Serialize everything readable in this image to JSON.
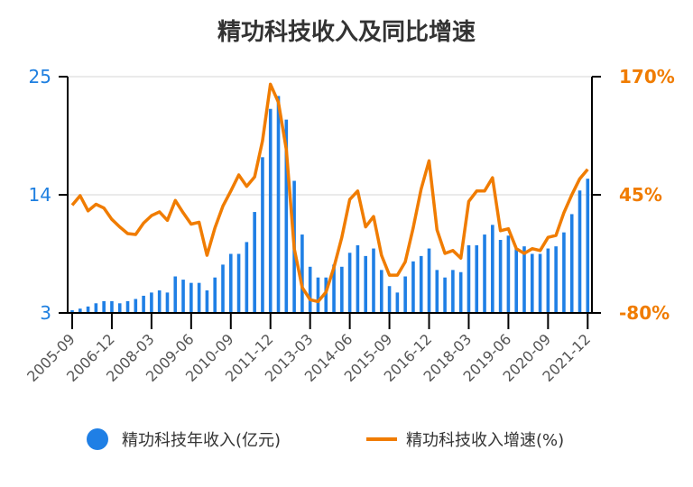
{
  "chart_data": {
    "type": "bar+line",
    "title": "精功科技收入及同比增速",
    "x": [
      "2005-09",
      "2005-12",
      "2006-03",
      "2006-06",
      "2006-09",
      "2006-12",
      "2007-03",
      "2007-06",
      "2007-09",
      "2007-12",
      "2008-03",
      "2008-06",
      "2008-09",
      "2008-12",
      "2009-03",
      "2009-06",
      "2009-09",
      "2009-12",
      "2010-03",
      "2010-06",
      "2010-09",
      "2010-12",
      "2011-03",
      "2011-06",
      "2011-09",
      "2011-12",
      "2012-03",
      "2012-06",
      "2012-09",
      "2012-12",
      "2013-03",
      "2013-06",
      "2013-09",
      "2013-12",
      "2014-03",
      "2014-06",
      "2014-09",
      "2014-12",
      "2015-03",
      "2015-06",
      "2015-09",
      "2015-12",
      "2016-03",
      "2016-06",
      "2016-09",
      "2016-12",
      "2017-03",
      "2017-06",
      "2017-09",
      "2017-12",
      "2018-03",
      "2018-06",
      "2018-09",
      "2018-12",
      "2019-03",
      "2019-06",
      "2019-09",
      "2019-12",
      "2020-03",
      "2020-06",
      "2020-09",
      "2020-12",
      "2021-03",
      "2021-06",
      "2021-09",
      "2021-12"
    ],
    "xtick_labels": [
      "2005-09",
      "2006-12",
      "2008-03",
      "2009-06",
      "2010-09",
      "2011-12",
      "2013-03",
      "2014-06",
      "2015-09",
      "2016-12",
      "2018-03",
      "2019-06",
      "2020-09",
      "2021-12"
    ],
    "series": [
      {
        "name": "精功科技年收入(亿元)",
        "type": "bar",
        "axis": "left",
        "color": "#1f7fe5",
        "values": [
          3.25,
          3.4,
          3.6,
          3.9,
          4.1,
          4.1,
          3.9,
          4.1,
          4.3,
          4.6,
          4.9,
          5.1,
          4.9,
          6.4,
          6.1,
          5.8,
          5.8,
          5.1,
          6.3,
          7.5,
          8.5,
          8.5,
          9.6,
          12.4,
          17.5,
          22.0,
          23.2,
          21.0,
          15.3,
          10.3,
          7.3,
          6.3,
          6.3,
          7.5,
          7.3,
          8.6,
          9.3,
          8.3,
          9.0,
          7.0,
          5.5,
          4.9,
          6.4,
          7.8,
          8.3,
          9.0,
          7.0,
          6.3,
          7.0,
          6.8,
          9.3,
          9.3,
          10.3,
          11.2,
          9.8,
          10.2,
          9.0,
          9.2,
          8.5,
          8.5,
          9.0,
          9.2,
          10.5,
          12.2,
          14.4,
          15.5
        ]
      },
      {
        "name": "精功科技收入增速(%)",
        "type": "line",
        "axis": "right",
        "color": "#f07c00",
        "values": [
          34,
          44,
          28,
          35,
          31,
          19,
          11,
          4,
          3,
          15,
          23,
          27,
          18,
          39,
          26,
          14,
          16,
          -19,
          10,
          33,
          49,
          66,
          54,
          64,
          102,
          162,
          143,
          93,
          -12,
          -53,
          -66,
          -68,
          -58,
          -32,
          0,
          40,
          49,
          11,
          22,
          -19,
          -40,
          -40,
          -26,
          10,
          51,
          81,
          8,
          -17,
          -14,
          -22,
          38,
          49,
          49,
          63,
          7,
          9,
          -12,
          -17,
          -12,
          -14,
          0,
          2,
          26,
          45,
          62,
          72
        ]
      }
    ],
    "y_left": {
      "ylim": [
        3,
        25
      ],
      "ticks": [
        "25",
        "14",
        "3"
      ],
      "tick_values": [
        25,
        14,
        3
      ]
    },
    "y_right": {
      "ylim": [
        -80,
        170
      ],
      "ticks": [
        "170%",
        "45%",
        "-80%"
      ],
      "tick_values": [
        170,
        45,
        -80
      ]
    },
    "grid": true,
    "legend_placement": "bottom"
  }
}
